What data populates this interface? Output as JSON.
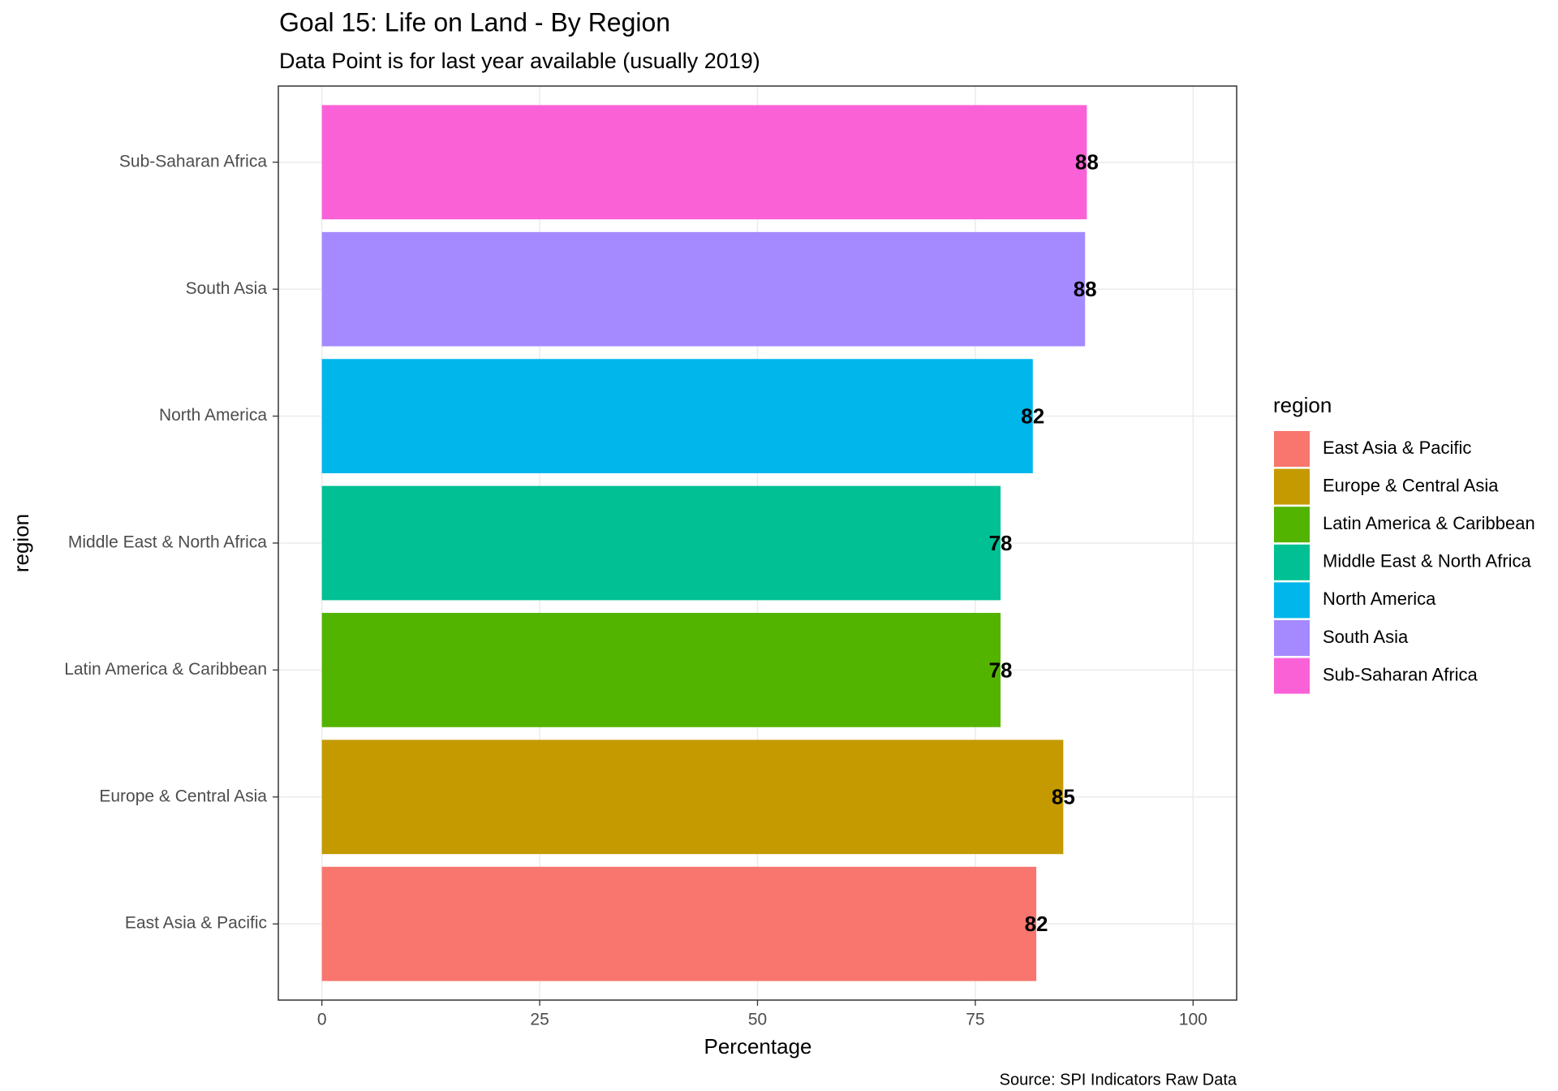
{
  "chart_data": {
    "type": "bar",
    "orientation": "horizontal",
    "title": "Goal 15: Life on Land - By Region",
    "subtitle": "Data Point is for last year available (usually 2019)",
    "x_label": "Percentage",
    "y_label": "region",
    "caption": "Source: SPI Indicators Raw Data",
    "legend_title": "region",
    "legend": "right",
    "categories": [
      "East Asia & Pacific",
      "Europe & Central Asia",
      "Latin America & Caribbean",
      "Middle East & North Africa",
      "North America",
      "South Asia",
      "Sub-Saharan Africa"
    ],
    "values": [
      82.0,
      85.1,
      77.9,
      77.9,
      81.6,
      87.6,
      87.8
    ],
    "value_labels": [
      "82",
      "85",
      "78",
      "78",
      "82",
      "88",
      "88"
    ],
    "colors": [
      "#f8766d",
      "#c49a00",
      "#53b400",
      "#00c094",
      "#00b6eb",
      "#a58aff",
      "#fb61d7"
    ],
    "xlim": [
      -5,
      105
    ],
    "xticks": [
      0,
      25,
      50,
      75,
      100
    ],
    "grid": true
  }
}
